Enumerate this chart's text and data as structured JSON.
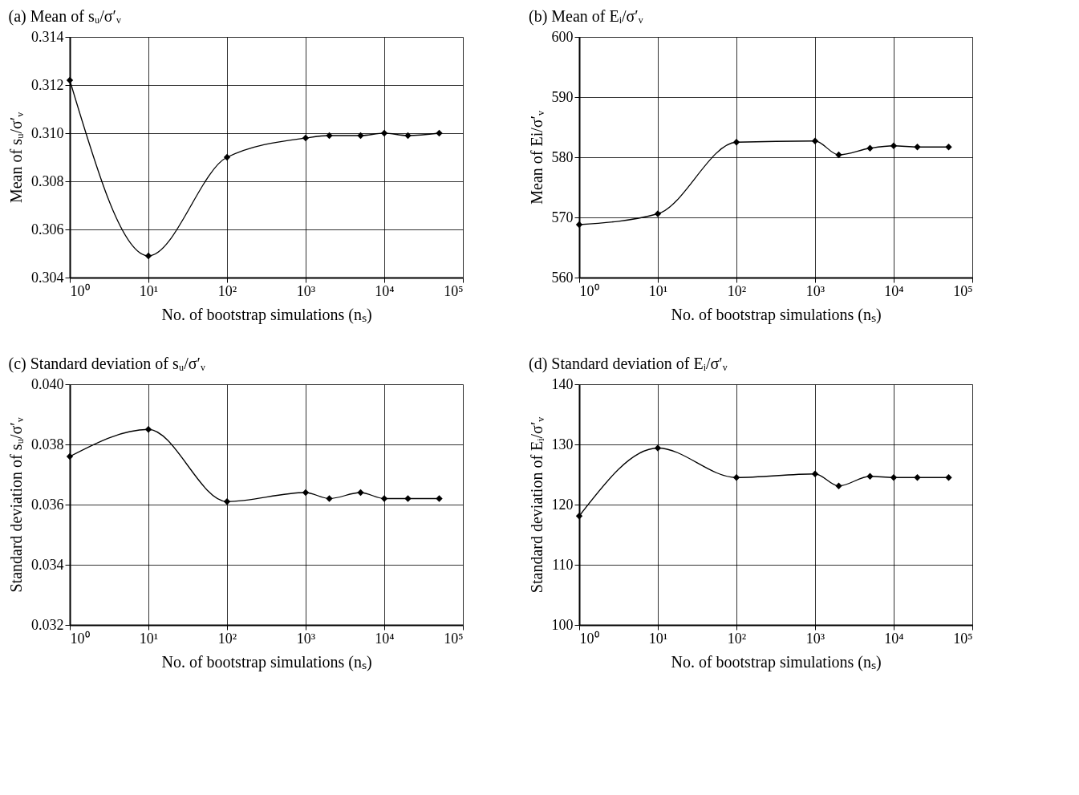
{
  "chart_data": [
    {
      "type": "line",
      "title": "(a) Mean of sᵤ/σ′ᵥ",
      "xlabel": "No. of bootstrap simulations (nₛ)",
      "ylabel": "Mean of sᵤ/σ′ᵥ",
      "log": "x",
      "grid": true,
      "marker": "diamond",
      "line_style": "solid",
      "legend": false,
      "x": [
        1,
        10,
        100,
        1000,
        2000,
        5000,
        10000,
        20000,
        50000
      ],
      "series": [
        {
          "color": "#000000",
          "values": [
            0.3122,
            0.3049,
            0.309,
            0.3098,
            0.3099,
            0.3099,
            0.31,
            0.3099,
            0.31
          ]
        }
      ],
      "xlim": [
        1,
        100000
      ],
      "xticks": [
        {
          "value": 1,
          "label": "10⁰"
        },
        {
          "value": 10,
          "label": "10¹"
        },
        {
          "value": 100,
          "label": "10²"
        },
        {
          "value": 1000,
          "label": "10³"
        },
        {
          "value": 10000,
          "label": "10⁴"
        },
        {
          "value": 100000,
          "label": "10⁵"
        }
      ],
      "ylim": [
        0.304,
        0.314
      ],
      "yticks": [
        {
          "value": 0.304,
          "label": "0.304"
        },
        {
          "value": 0.306,
          "label": "0.306"
        },
        {
          "value": 0.308,
          "label": "0.308"
        },
        {
          "value": 0.31,
          "label": "0.310"
        },
        {
          "value": 0.312,
          "label": "0.312"
        },
        {
          "value": 0.314,
          "label": "0.314"
        }
      ]
    },
    {
      "type": "line",
      "title": "(b) Mean of Eᵢ/σ′ᵥ",
      "xlabel": "No. of bootstrap simulations (nₛ)",
      "ylabel": "Mean of Ei/σ′ᵥ",
      "log": "x",
      "grid": true,
      "marker": "diamond",
      "line_style": "solid",
      "legend": false,
      "x": [
        1,
        10,
        100,
        1000,
        2000,
        5000,
        10000,
        20000,
        50000
      ],
      "series": [
        {
          "color": "#000000",
          "values": [
            568.8,
            570.6,
            582.5,
            582.7,
            580.4,
            581.5,
            581.9,
            581.7,
            581.7
          ]
        }
      ],
      "xlim": [
        1,
        100000
      ],
      "xticks": [
        {
          "value": 1,
          "label": "10⁰"
        },
        {
          "value": 10,
          "label": "10¹"
        },
        {
          "value": 100,
          "label": "10²"
        },
        {
          "value": 1000,
          "label": "10³"
        },
        {
          "value": 10000,
          "label": "10⁴"
        },
        {
          "value": 100000,
          "label": "10⁵"
        }
      ],
      "ylim": [
        560,
        600
      ],
      "yticks": [
        560,
        570,
        580,
        590,
        600
      ]
    },
    {
      "type": "line",
      "title": "(c) Standard deviation of sᵤ/σ′ᵥ",
      "xlabel": "No. of bootstrap simulations (nₛ)",
      "ylabel": "Standard deviation of sᵤ/σ′ᵥ",
      "log": "x",
      "grid": true,
      "marker": "diamond",
      "line_style": "solid",
      "legend": false,
      "x": [
        1,
        10,
        100,
        1000,
        2000,
        5000,
        10000,
        20000,
        50000
      ],
      "series": [
        {
          "color": "#000000",
          "values": [
            0.0376,
            0.0385,
            0.0361,
            0.0364,
            0.0362,
            0.0364,
            0.0362,
            0.0362,
            0.0362
          ]
        }
      ],
      "xlim": [
        1,
        100000
      ],
      "xticks": [
        {
          "value": 1,
          "label": "10⁰"
        },
        {
          "value": 10,
          "label": "10¹"
        },
        {
          "value": 100,
          "label": "10²"
        },
        {
          "value": 1000,
          "label": "10³"
        },
        {
          "value": 10000,
          "label": "10⁴"
        },
        {
          "value": 100000,
          "label": "10⁵"
        }
      ],
      "ylim": [
        0.032,
        0.04
      ],
      "yticks": [
        {
          "value": 0.032,
          "label": "0.032"
        },
        {
          "value": 0.034,
          "label": "0.034"
        },
        {
          "value": 0.036,
          "label": "0.036"
        },
        {
          "value": 0.038,
          "label": "0.038"
        },
        {
          "value": 0.04,
          "label": "0.040"
        }
      ]
    },
    {
      "type": "line",
      "title": "(d) Standard deviation of Eᵢ/σ′ᵥ",
      "xlabel": "No. of bootstrap simulations (nₛ)",
      "ylabel": "Standard deviation of Eᵢ/σ′ᵥ",
      "log": "x",
      "grid": true,
      "marker": "diamond",
      "line_style": "solid",
      "legend": false,
      "x": [
        1,
        10,
        100,
        1000,
        2000,
        5000,
        10000,
        20000,
        50000
      ],
      "series": [
        {
          "color": "#000000",
          "values": [
            118.1,
            129.4,
            124.5,
            125.1,
            123.1,
            124.7,
            124.5,
            124.5,
            124.5
          ]
        }
      ],
      "xlim": [
        1,
        100000
      ],
      "xticks": [
        {
          "value": 1,
          "label": "10⁰"
        },
        {
          "value": 10,
          "label": "10¹"
        },
        {
          "value": 100,
          "label": "10²"
        },
        {
          "value": 1000,
          "label": "10³"
        },
        {
          "value": 10000,
          "label": "10⁴"
        },
        {
          "value": 100000,
          "label": "10⁵"
        }
      ],
      "ylim": [
        100,
        140
      ],
      "yticks": [
        100,
        110,
        120,
        130,
        140
      ]
    }
  ]
}
